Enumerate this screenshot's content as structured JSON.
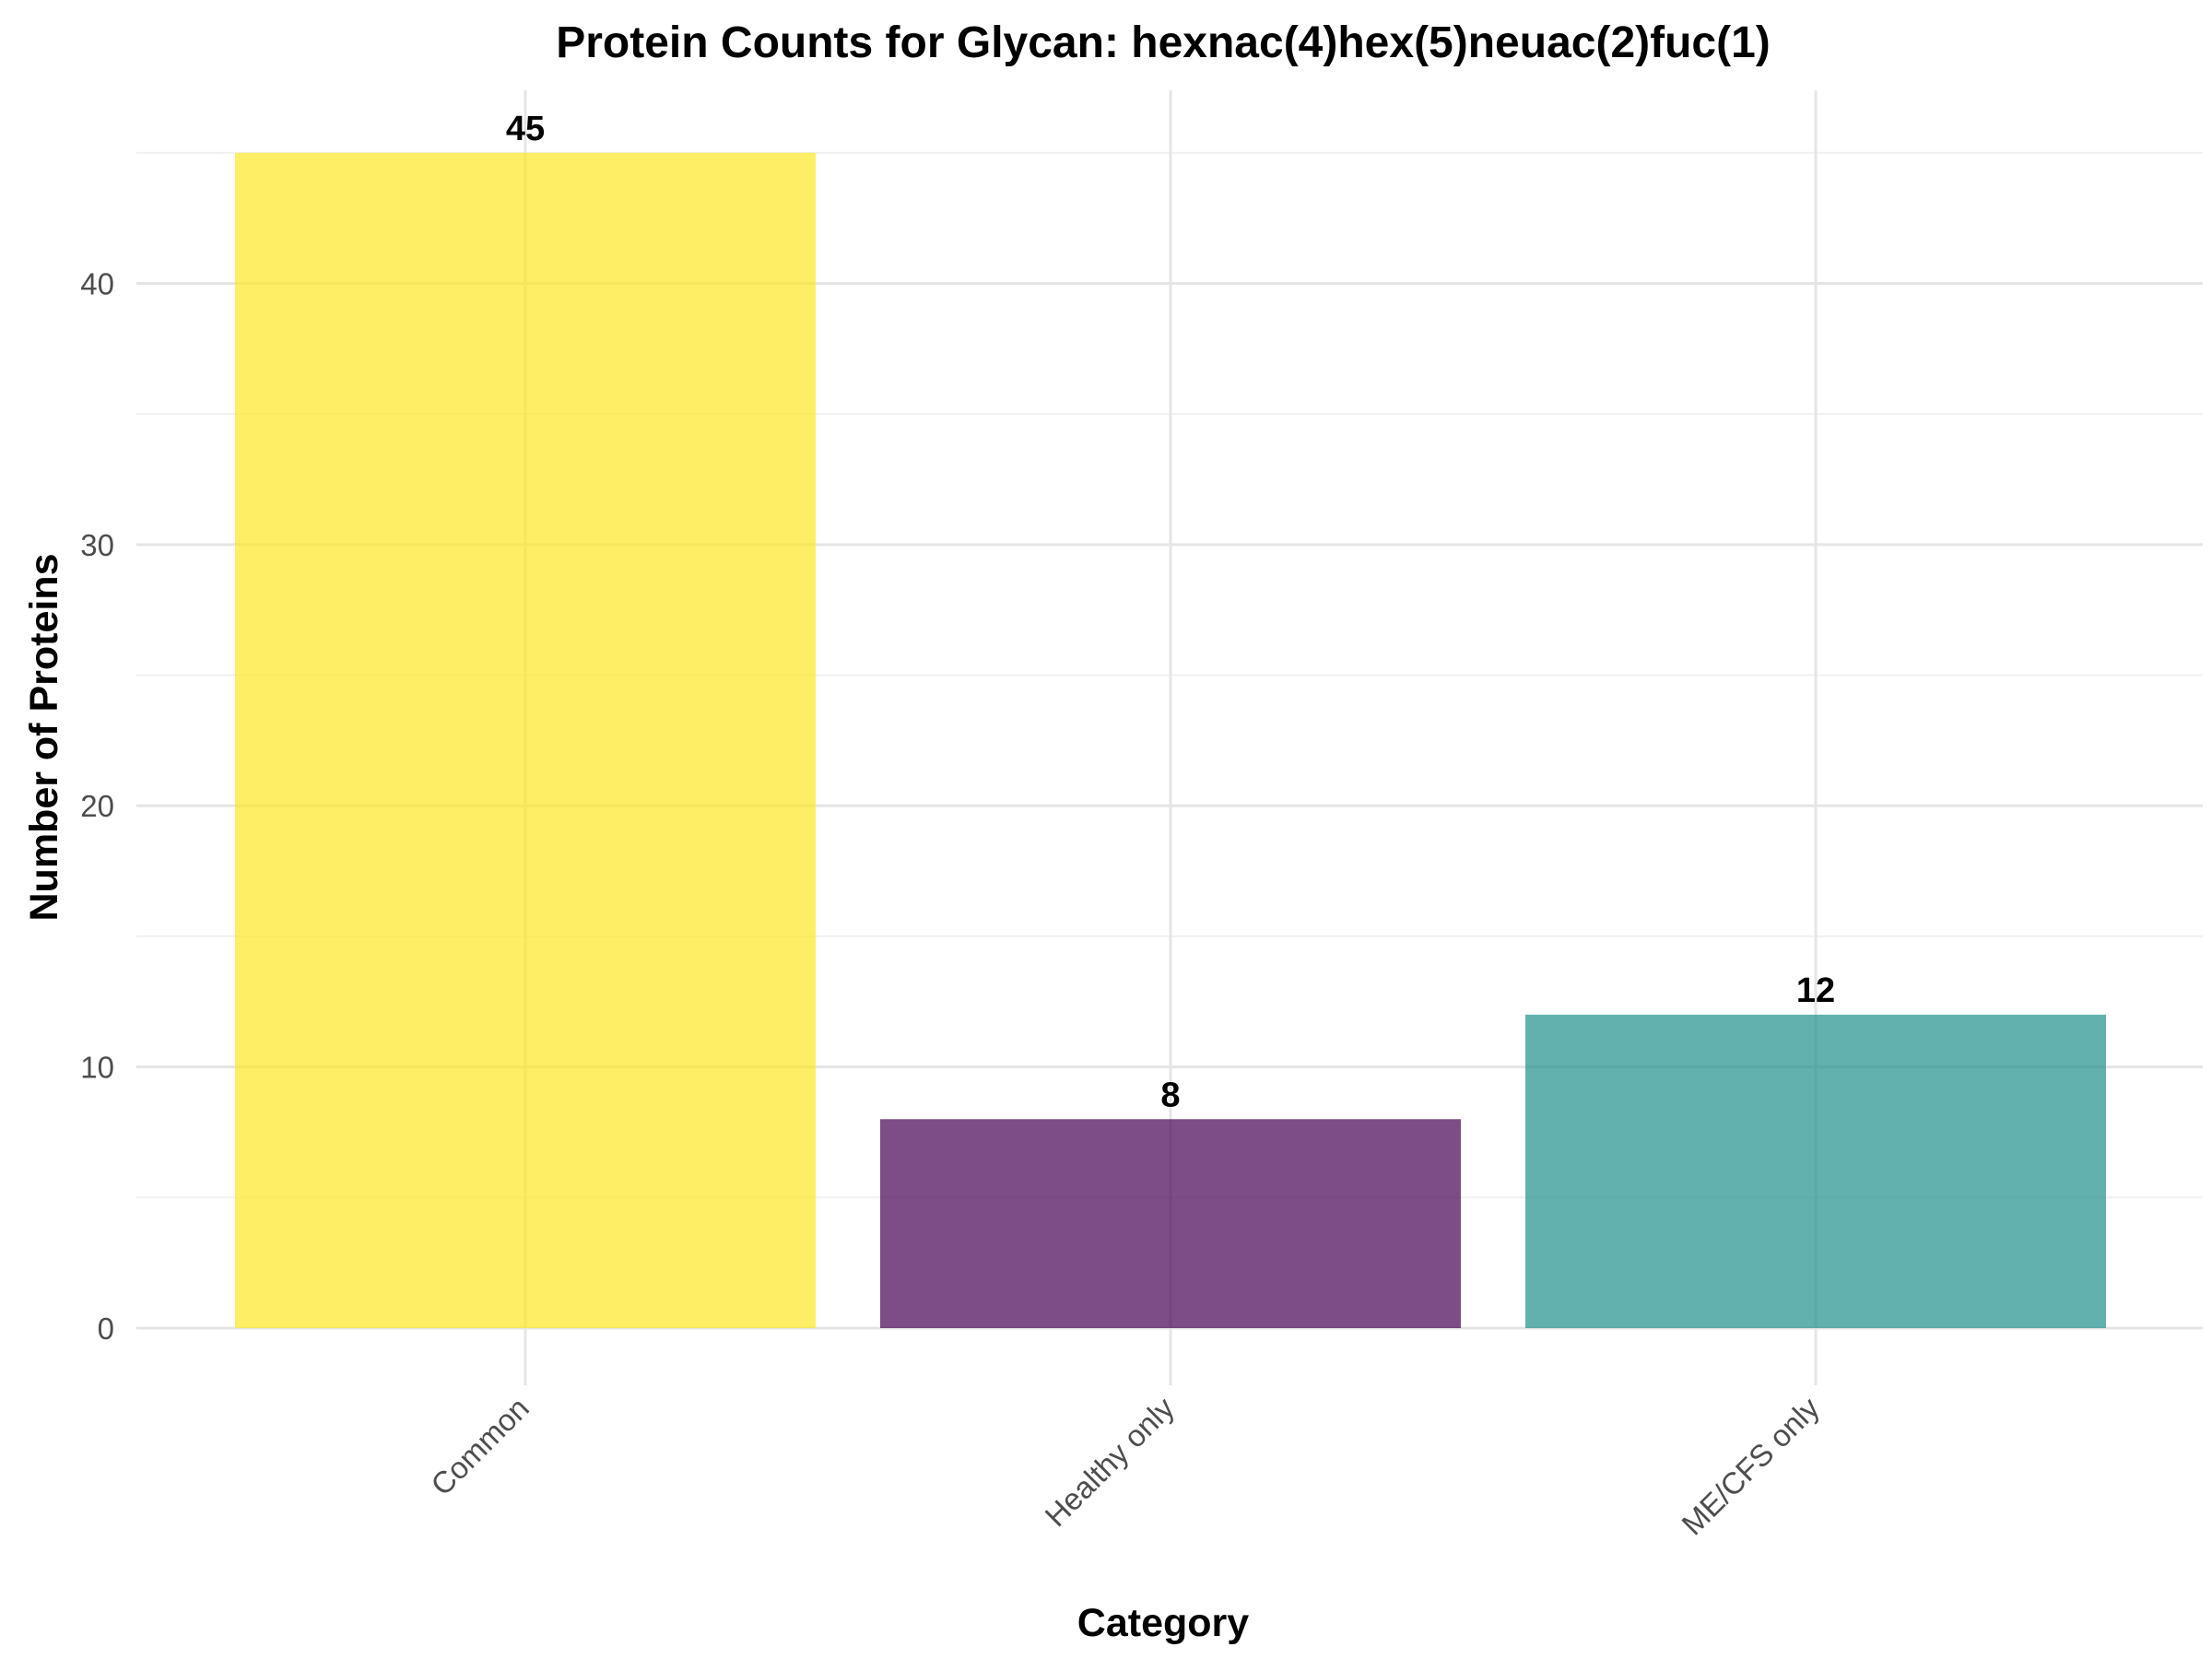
{
  "chart_data": {
    "type": "bar",
    "title": "Protein Counts for Glycan: hexnac(4)hex(5)neuac(2)fuc(1)",
    "xlabel": "Category",
    "ylabel": "Number of Proteins",
    "categories": [
      "Common",
      "Healthy only",
      "ME/CFS only"
    ],
    "values": [
      45,
      8,
      12
    ],
    "data_labels": [
      "45",
      "8",
      "12"
    ],
    "colors": [
      "#FDE725",
      "#440154",
      "#21908C"
    ],
    "bar_opacity": 0.7,
    "ylim": [
      0,
      47.25
    ],
    "yticks": [
      0,
      10,
      20,
      30,
      40
    ],
    "ytick_labels": [
      "0",
      "10",
      "20",
      "30",
      "40"
    ],
    "yminor": [
      5,
      15,
      25,
      35,
      45
    ],
    "grid": true,
    "legend": "none",
    "x_tick_rotation": 45
  }
}
